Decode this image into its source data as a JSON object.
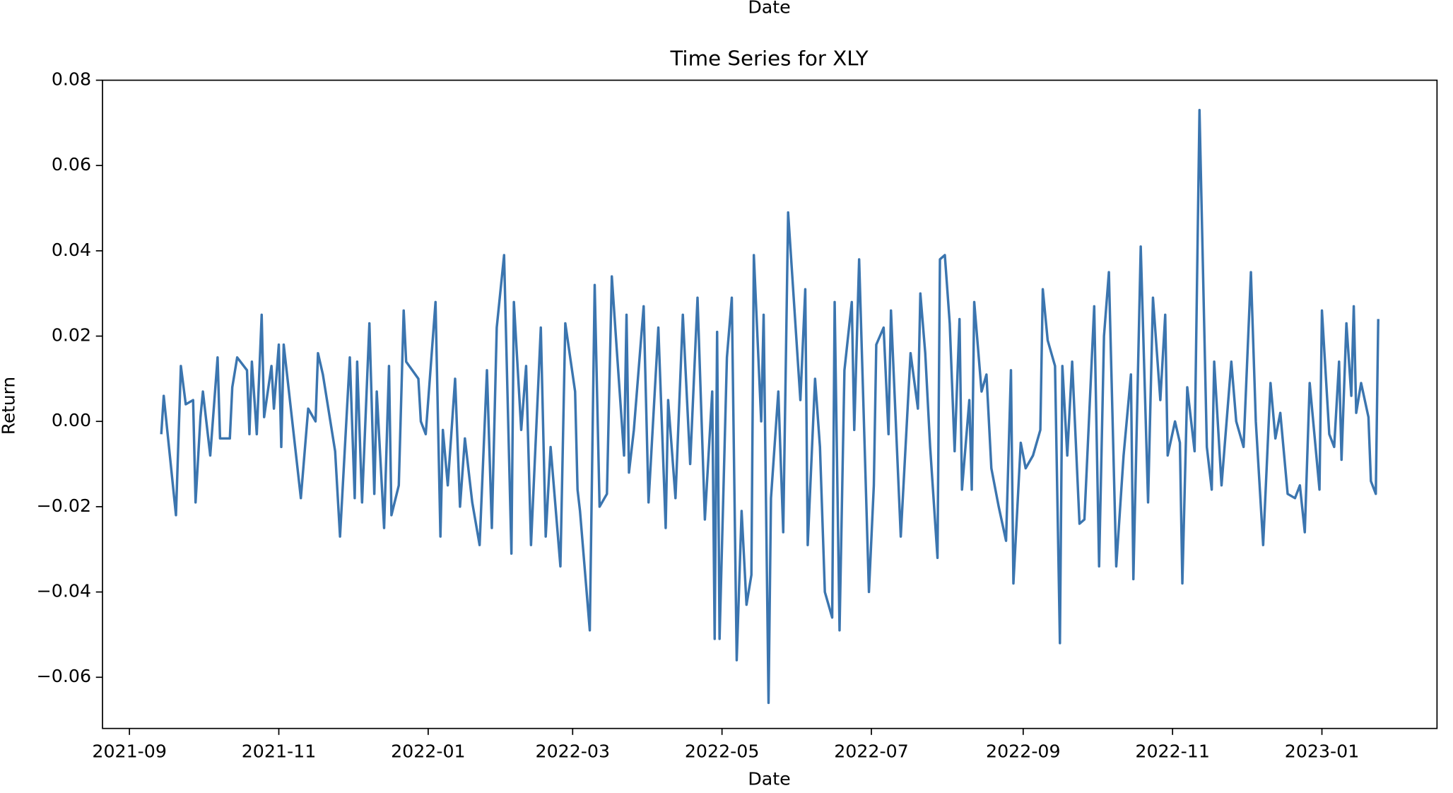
{
  "clipped_label": "Date",
  "chart_data": {
    "type": "line",
    "title": "Time Series for XLY",
    "xlabel": "Date",
    "ylabel": "Return",
    "grid": false,
    "xlim": [
      "2021-08-21",
      "2023-02-17"
    ],
    "xticks": [
      {
        "value": "2021-09-01",
        "label": "2021-09"
      },
      {
        "value": "2021-11-01",
        "label": "2021-11"
      },
      {
        "value": "2022-01-01",
        "label": "2022-01"
      },
      {
        "value": "2022-03-01",
        "label": "2022-03"
      },
      {
        "value": "2022-05-01",
        "label": "2022-05"
      },
      {
        "value": "2022-07-01",
        "label": "2022-07"
      },
      {
        "value": "2022-09-01",
        "label": "2022-09"
      },
      {
        "value": "2022-11-01",
        "label": "2022-11"
      },
      {
        "value": "2023-01-01",
        "label": "2023-01"
      }
    ],
    "ylim": [
      -0.072,
      0.08
    ],
    "yticks": [
      {
        "value": -0.06,
        "label": "−0.06"
      },
      {
        "value": -0.04,
        "label": "−0.04"
      },
      {
        "value": -0.02,
        "label": "−0.02"
      },
      {
        "value": 0,
        "label": "0.00"
      },
      0.02,
      0.04,
      0.06,
      0.08
    ],
    "x": [
      "2021-09-14",
      "2021-09-15",
      "2021-09-20",
      "2021-09-22",
      "2021-09-24",
      "2021-09-27",
      "2021-09-28",
      "2021-09-30",
      "2021-10-01",
      "2021-10-04",
      "2021-10-07",
      "2021-10-08",
      "2021-10-12",
      "2021-10-13",
      "2021-10-15",
      "2021-10-19",
      "2021-10-20",
      "2021-10-21",
      "2021-10-23",
      "2021-10-25",
      "2021-10-26",
      "2021-10-29",
      "2021-10-30",
      "2021-11-01",
      "2021-11-02",
      "2021-11-03",
      "2021-11-10",
      "2021-11-13",
      "2021-11-16",
      "2021-11-17",
      "2021-11-19",
      "2021-11-24",
      "2021-11-26",
      "2021-11-30",
      "2021-12-02",
      "2021-12-03",
      "2021-12-05",
      "2021-12-08",
      "2021-12-10",
      "2021-12-11",
      "2021-12-14",
      "2021-12-16",
      "2021-12-17",
      "2021-12-20",
      "2021-12-22",
      "2021-12-23",
      "2021-12-28",
      "2021-12-29",
      "2021-12-31",
      "2022-01-04",
      "2022-01-06",
      "2022-01-07",
      "2022-01-09",
      "2022-01-12",
      "2022-01-14",
      "2022-01-16",
      "2022-01-19",
      "2022-01-22",
      "2022-01-25",
      "2022-01-27",
      "2022-01-29",
      "2022-02-01",
      "2022-02-04",
      "2022-02-05",
      "2022-02-08",
      "2022-02-10",
      "2022-02-12",
      "2022-02-16",
      "2022-02-18",
      "2022-02-20",
      "2022-02-24",
      "2022-02-26",
      "2022-03-02",
      "2022-03-03",
      "2022-03-04",
      "2022-03-08",
      "2022-03-10",
      "2022-03-12",
      "2022-03-15",
      "2022-03-17",
      "2022-03-19",
      "2022-03-22",
      "2022-03-23",
      "2022-03-24",
      "2022-03-26",
      "2022-03-30",
      "2022-04-01",
      "2022-04-05",
      "2022-04-08",
      "2022-04-09",
      "2022-04-12",
      "2022-04-15",
      "2022-04-18",
      "2022-04-21",
      "2022-04-24",
      "2022-04-27",
      "2022-04-28",
      "2022-04-29",
      "2022-04-30",
      "2022-05-03",
      "2022-05-05",
      "2022-05-07",
      "2022-05-09",
      "2022-05-11",
      "2022-05-13",
      "2022-05-14",
      "2022-05-17",
      "2022-05-18",
      "2022-05-20",
      "2022-05-21",
      "2022-05-24",
      "2022-05-26",
      "2022-05-28",
      "2022-06-02",
      "2022-06-04",
      "2022-06-05",
      "2022-06-08",
      "2022-06-10",
      "2022-06-12",
      "2022-06-15",
      "2022-06-16",
      "2022-06-18",
      "2022-06-20",
      "2022-06-23",
      "2022-06-24",
      "2022-06-26",
      "2022-06-30",
      "2022-07-02",
      "2022-07-03",
      "2022-07-06",
      "2022-07-08",
      "2022-07-09",
      "2022-07-13",
      "2022-07-17",
      "2022-07-20",
      "2022-07-21",
      "2022-07-23",
      "2022-07-25",
      "2022-07-28",
      "2022-07-29",
      "2022-07-31",
      "2022-08-02",
      "2022-08-04",
      "2022-08-06",
      "2022-08-07",
      "2022-08-10",
      "2022-08-11",
      "2022-08-12",
      "2022-08-15",
      "2022-08-17",
      "2022-08-19",
      "2022-08-22",
      "2022-08-25",
      "2022-08-27",
      "2022-08-28",
      "2022-08-31",
      "2022-09-02",
      "2022-09-05",
      "2022-09-08",
      "2022-09-09",
      "2022-09-11",
      "2022-09-14",
      "2022-09-16",
      "2022-09-17",
      "2022-09-19",
      "2022-09-21",
      "2022-09-24",
      "2022-09-26",
      "2022-09-30",
      "2022-10-02",
      "2022-10-04",
      "2022-10-06",
      "2022-10-09",
      "2022-10-12",
      "2022-10-15",
      "2022-10-16",
      "2022-10-19",
      "2022-10-22",
      "2022-10-24",
      "2022-10-27",
      "2022-10-29",
      "2022-10-30",
      "2022-11-02",
      "2022-11-04",
      "2022-11-05",
      "2022-11-07",
      "2022-11-10",
      "2022-11-12",
      "2022-11-15",
      "2022-11-17",
      "2022-11-18",
      "2022-11-21",
      "2022-11-25",
      "2022-11-27",
      "2022-11-30",
      "2022-12-03",
      "2022-12-05",
      "2022-12-08",
      "2022-12-11",
      "2022-12-13",
      "2022-12-15",
      "2022-12-18",
      "2022-12-21",
      "2022-12-23",
      "2022-12-25",
      "2022-12-27",
      "2022-12-31",
      "2023-01-01",
      "2023-01-04",
      "2023-01-06",
      "2023-01-08",
      "2023-01-09",
      "2023-01-11",
      "2023-01-13",
      "2023-01-14",
      "2023-01-15",
      "2023-01-17",
      "2023-01-20",
      "2023-01-21",
      "2023-01-23",
      "2023-01-24"
    ],
    "series": [
      {
        "name": "XLY",
        "color": "#3b75af",
        "values": [
          -0.003,
          0.006,
          -0.022,
          0.013,
          0.004,
          0.005,
          -0.019,
          0.001,
          0.007,
          -0.008,
          0.015,
          -0.004,
          -0.004,
          0.008,
          0.015,
          0.012,
          -0.003,
          0.014,
          -0.003,
          0.025,
          0.001,
          0.013,
          0.003,
          0.018,
          -0.006,
          0.018,
          -0.018,
          0.003,
          0.0,
          0.016,
          0.011,
          -0.007,
          -0.027,
          0.015,
          -0.018,
          0.014,
          -0.019,
          0.023,
          -0.017,
          0.007,
          -0.025,
          0.013,
          -0.022,
          -0.015,
          0.026,
          0.014,
          0.01,
          0.0,
          -0.003,
          0.028,
          -0.027,
          -0.002,
          -0.015,
          0.01,
          -0.02,
          -0.004,
          -0.019,
          -0.029,
          0.012,
          -0.025,
          0.022,
          0.039,
          -0.031,
          0.028,
          -0.002,
          0.013,
          -0.029,
          0.022,
          -0.027,
          -0.006,
          -0.034,
          0.023,
          0.007,
          -0.016,
          -0.021,
          -0.049,
          0.032,
          -0.02,
          -0.017,
          0.034,
          0.017,
          -0.008,
          0.025,
          -0.012,
          -0.002,
          0.027,
          -0.019,
          0.022,
          -0.025,
          0.005,
          -0.018,
          0.025,
          -0.01,
          0.029,
          -0.023,
          0.007,
          -0.051,
          0.021,
          -0.051,
          0.015,
          0.029,
          -0.056,
          -0.021,
          -0.043,
          -0.036,
          0.039,
          0.0,
          0.025,
          -0.066,
          -0.018,
          0.007,
          -0.026,
          0.049,
          0.005,
          0.031,
          -0.029,
          0.01,
          -0.006,
          -0.04,
          -0.046,
          0.028,
          -0.049,
          0.012,
          0.028,
          -0.002,
          0.038,
          -0.04,
          -0.015,
          0.018,
          0.022,
          -0.003,
          0.026,
          -0.027,
          0.016,
          0.003,
          0.03,
          0.016,
          -0.006,
          -0.032,
          0.038,
          0.039,
          0.023,
          -0.007,
          0.024,
          -0.016,
          0.005,
          -0.016,
          0.028,
          0.007,
          0.011,
          -0.011,
          -0.02,
          -0.028,
          0.012,
          -0.038,
          -0.005,
          -0.011,
          -0.008,
          -0.002,
          0.031,
          0.019,
          0.013,
          -0.052,
          0.013,
          -0.008,
          0.014,
          -0.024,
          -0.023,
          0.027,
          -0.034,
          0.02,
          0.035,
          -0.034,
          -0.008,
          0.011,
          -0.037,
          0.041,
          -0.019,
          0.029,
          0.005,
          0.025,
          -0.008,
          0.0,
          -0.005,
          -0.038,
          0.008,
          -0.007,
          0.073,
          -0.006,
          -0.016,
          0.014,
          -0.015,
          0.014,
          0.0,
          -0.006,
          0.035,
          0.0,
          -0.029,
          0.009,
          -0.004,
          0.002,
          -0.017,
          -0.018,
          -0.015,
          -0.026,
          0.009,
          -0.016,
          0.026,
          -0.003,
          -0.006,
          0.014,
          -0.009,
          0.023,
          0.006,
          0.027,
          0.002,
          0.009,
          0.001,
          -0.014,
          -0.017,
          0.024
        ]
      }
    ]
  }
}
